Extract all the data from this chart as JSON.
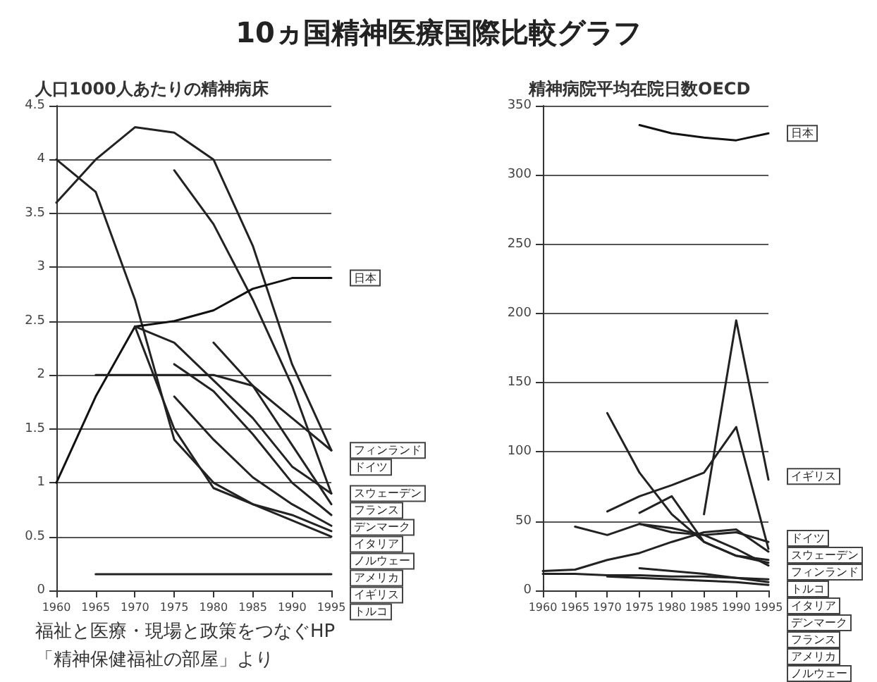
{
  "chart_data": [
    {
      "type": "line",
      "title": "10ヵ国精神医療国際比較グラフ",
      "subtitle": "人口1000人あたりの精神病床",
      "categories": [
        "1960",
        "1965",
        "1970",
        "1975",
        "1980",
        "1985",
        "1990",
        "1995"
      ],
      "series": [
        {
          "name": "フィンランド",
          "color": "#222222",
          "values": [
            3.6,
            4.0,
            4.3,
            4.25,
            4.0,
            3.2,
            2.1,
            1.3
          ]
        },
        {
          "name": "スウェーデン",
          "color": "#222222",
          "values": [
            null,
            null,
            null,
            3.9,
            3.4,
            2.7,
            1.9,
            0.9
          ]
        },
        {
          "name": "アメリカ",
          "color": "#222222",
          "values": [
            4.0,
            3.7,
            2.7,
            1.4,
            1.0,
            0.8,
            0.7,
            0.55
          ]
        },
        {
          "name": "日本",
          "color": "#111111",
          "values": [
            1.0,
            1.8,
            2.45,
            2.5,
            2.6,
            2.8,
            2.9,
            2.9
          ]
        },
        {
          "name": "フランス",
          "color": "#222222",
          "values": [
            null,
            null,
            2.45,
            2.3,
            1.95,
            1.6,
            1.15,
            0.9
          ]
        },
        {
          "name": "デンマーク",
          "color": "#222222",
          "values": [
            null,
            null,
            null,
            null,
            2.3,
            1.9,
            1.35,
            0.8
          ]
        },
        {
          "name": "ドイツ",
          "color": "#222222",
          "values": [
            null,
            2.0,
            2.0,
            2.0,
            2.0,
            1.9,
            1.6,
            1.3
          ]
        },
        {
          "name": "イタリア",
          "color": "#222222",
          "values": [
            null,
            null,
            null,
            2.1,
            1.85,
            1.45,
            1.0,
            0.7
          ]
        },
        {
          "name": "イギリス",
          "color": "#222222",
          "values": [
            null,
            null,
            2.45,
            1.5,
            0.95,
            0.8,
            0.65,
            0.5
          ]
        },
        {
          "name": "ノルウェー",
          "color": "#222222",
          "values": [
            null,
            null,
            null,
            1.8,
            1.4,
            1.05,
            0.8,
            0.6
          ]
        },
        {
          "name": "トルコ",
          "color": "#222222",
          "values": [
            null,
            0.15,
            0.15,
            0.15,
            0.15,
            0.15,
            0.15,
            0.15
          ]
        }
      ],
      "ylim": [
        0,
        4.5
      ],
      "yticks": [
        0,
        0.5,
        1,
        1.5,
        2,
        2.5,
        3,
        3.5,
        4,
        4.5
      ],
      "grid": "y",
      "legend": false,
      "marker": "none",
      "line_style": "solid",
      "annotations": [
        "福祉と医療・現場と政策をつなぐHP",
        "「精神保健福祉の部屋」より"
      ]
    },
    {
      "type": "line",
      "title": "精神病院平均在院日数OECD",
      "categories": [
        "1960",
        "1965",
        "1970",
        "1975",
        "1980",
        "1985",
        "1990",
        "1995"
      ],
      "series": [
        {
          "name": "日本",
          "color": "#111111",
          "values": [
            null,
            null,
            null,
            336,
            330,
            327,
            325,
            330
          ]
        },
        {
          "name": "イギリス",
          "color": "#222222",
          "values": [
            null,
            null,
            null,
            null,
            null,
            55,
            195,
            80
          ]
        },
        {
          "name": "イタリア",
          "color": "#222222",
          "values": [
            null,
            null,
            128,
            85,
            55,
            35,
            25,
            20
          ]
        },
        {
          "name": "スウェーデン",
          "color": "#222222",
          "values": [
            null,
            null,
            57,
            68,
            76,
            85,
            118,
            30
          ]
        },
        {
          "name": "トルコ",
          "color": "#222222",
          "values": [
            null,
            null,
            null,
            56,
            68,
            35,
            25,
            22
          ]
        },
        {
          "name": "ドイツ",
          "color": "#222222",
          "values": [
            null,
            46,
            40,
            48,
            45,
            40,
            42,
            35
          ]
        },
        {
          "name": "フィンランド",
          "color": "#222222",
          "values": [
            14,
            15,
            22,
            27,
            35,
            42,
            44,
            28
          ]
        },
        {
          "name": "デンマーク",
          "color": "#222222",
          "values": [
            null,
            null,
            null,
            48,
            42,
            40,
            30,
            18
          ]
        },
        {
          "name": "アメリカ",
          "color": "#222222",
          "values": [
            null,
            null,
            null,
            16,
            14,
            12,
            9,
            6
          ]
        },
        {
          "name": "フランス",
          "color": "#222222",
          "values": [
            12,
            12,
            11,
            11,
            10,
            10,
            9,
            8
          ]
        },
        {
          "name": "ノルウェー",
          "color": "#222222",
          "values": [
            null,
            null,
            10,
            9,
            8,
            7,
            6,
            4
          ]
        }
      ],
      "ylim": [
        0,
        350
      ],
      "yticks": [
        0,
        50,
        100,
        150,
        200,
        250,
        300,
        350
      ],
      "grid": "y",
      "legend": false,
      "marker": "none",
      "line_style": "solid"
    }
  ]
}
